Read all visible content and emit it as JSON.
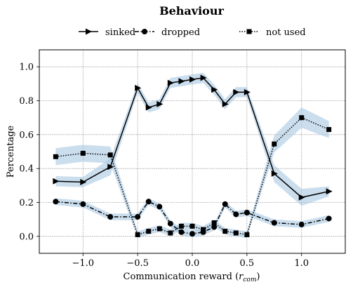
{
  "chart_data": {
    "type": "line",
    "title": "Behaviour",
    "xlabel": "Communication reward (",
    "xlabel_symbol": "r",
    "xlabel_sub": "com",
    "xlabel_close": ")",
    "ylabel": "Percentage",
    "xlim": [
      -1.4,
      1.4
    ],
    "ylim": [
      -0.1,
      1.1
    ],
    "xticks": [
      -1.0,
      -0.5,
      0.0,
      0.5,
      1.0
    ],
    "xtick_labels": [
      "−1.0",
      "−0.5",
      "0.0",
      "0.5",
      "1.0"
    ],
    "yticks": [
      0.0,
      0.2,
      0.4,
      0.6,
      0.8,
      1.0
    ],
    "ytick_labels": [
      "0.0",
      "0.2",
      "0.4",
      "0.6",
      "0.8",
      "1.0"
    ],
    "grid": true,
    "legend_position": "top-center",
    "band_color": "#a9c8e2",
    "line_color": "#000000",
    "series": [
      {
        "name": "sinked",
        "marker": "triangle-right",
        "linestyle": "solid",
        "x": [
          -1.25,
          -1.0,
          -0.75,
          -0.5,
          -0.4,
          -0.3,
          -0.2,
          -0.1,
          0.0,
          0.1,
          0.2,
          0.3,
          0.4,
          0.5,
          0.75,
          1.0,
          1.25
        ],
        "y": [
          0.325,
          0.32,
          0.41,
          0.875,
          0.76,
          0.78,
          0.905,
          0.915,
          0.925,
          0.935,
          0.865,
          0.78,
          0.85,
          0.85,
          0.37,
          0.23,
          0.265
        ],
        "band": [
          0.03,
          0.03,
          0.05,
          0.03,
          0.03,
          0.03,
          0.03,
          0.03,
          0.03,
          0.03,
          0.03,
          0.03,
          0.03,
          0.03,
          0.05,
          0.05,
          0.03
        ]
      },
      {
        "name": "dropped",
        "marker": "circle",
        "linestyle": "dashdot",
        "x": [
          -1.25,
          -1.0,
          -0.75,
          -0.5,
          -0.4,
          -0.3,
          -0.2,
          -0.1,
          0.0,
          0.1,
          0.2,
          0.3,
          0.4,
          0.5,
          0.75,
          1.0,
          1.25
        ],
        "y": [
          0.205,
          0.19,
          0.115,
          0.115,
          0.205,
          0.175,
          0.075,
          0.025,
          0.015,
          0.025,
          0.055,
          0.19,
          0.13,
          0.14,
          0.08,
          0.07,
          0.105
        ],
        "band": [
          0.02,
          0.02,
          0.02,
          0.02,
          0.02,
          0.02,
          0.02,
          0.02,
          0.02,
          0.02,
          0.02,
          0.02,
          0.02,
          0.02,
          0.02,
          0.02,
          0.02
        ]
      },
      {
        "name": "not used",
        "marker": "square",
        "linestyle": "dotted",
        "x": [
          -1.25,
          -1.0,
          -0.75,
          -0.5,
          -0.4,
          -0.3,
          -0.2,
          -0.1,
          0.0,
          0.1,
          0.2,
          0.3,
          0.4,
          0.5,
          0.75,
          1.0,
          1.25
        ],
        "y": [
          0.47,
          0.49,
          0.48,
          0.01,
          0.03,
          0.045,
          0.02,
          0.06,
          0.06,
          0.04,
          0.08,
          0.03,
          0.02,
          0.01,
          0.545,
          0.7,
          0.63
        ],
        "band": [
          0.05,
          0.05,
          0.05,
          0.02,
          0.02,
          0.02,
          0.02,
          0.02,
          0.02,
          0.02,
          0.02,
          0.02,
          0.02,
          0.02,
          0.05,
          0.06,
          0.05
        ]
      }
    ]
  }
}
